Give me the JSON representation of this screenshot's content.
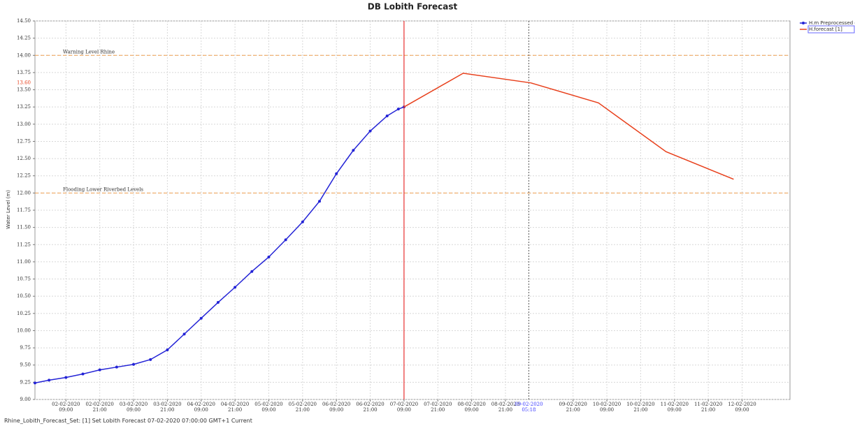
{
  "chart_data": {
    "type": "line",
    "title": "DB Lobith Forecast",
    "y_label": "Water Level (m)",
    "grid": true,
    "legend": "top-right",
    "xlim": [
      "2020-02-01T22:00",
      "2020-02-13T02:00"
    ],
    "ylim": [
      9.0,
      14.5
    ],
    "yticks": [
      {
        "value": 9,
        "label": "9.00"
      },
      9.25,
      {
        "value": 9.5,
        "label": "9.50"
      },
      9.75,
      {
        "value": 10,
        "label": "10.00"
      },
      10.25,
      {
        "value": 10.5,
        "label": "10.50"
      },
      10.75,
      {
        "value": 11,
        "label": "11.00"
      },
      11.25,
      {
        "value": 11.5,
        "label": "11.50"
      },
      11.75,
      {
        "value": 12,
        "label": "12.00"
      },
      12.25,
      {
        "value": 12.5,
        "label": "12.50"
      },
      12.75,
      {
        "value": 13,
        "label": "13.00"
      },
      13.25,
      {
        "value": 13.5,
        "label": "13.50"
      },
      13.75,
      {
        "value": 14,
        "label": "14.00"
      },
      14.25,
      {
        "value": 14.5,
        "label": "14.50"
      }
    ],
    "xticks": [
      {
        "value": "2020-02-02T09:00",
        "label": "02-02-2020 09:00"
      },
      {
        "value": "2020-02-02T21:00",
        "label": "02-02-2020 21:00"
      },
      {
        "value": "2020-02-03T09:00",
        "label": "03-02-2020 09:00"
      },
      {
        "value": "2020-02-03T21:00",
        "label": "03-02-2020 21:00"
      },
      {
        "value": "2020-02-04T09:00",
        "label": "04-02-2020 09:00"
      },
      {
        "value": "2020-02-04T21:00",
        "label": "04-02-2020 21:00"
      },
      {
        "value": "2020-02-05T09:00",
        "label": "05-02-2020 09:00"
      },
      {
        "value": "2020-02-05T21:00",
        "label": "05-02-2020 21:00"
      },
      {
        "value": "2020-02-06T09:00",
        "label": "06-02-2020 09:00"
      },
      {
        "value": "2020-02-06T21:00",
        "label": "06-02-2020 21:00"
      },
      {
        "value": "2020-02-07T09:00",
        "label": "07-02-2020 09:00"
      },
      {
        "value": "2020-02-07T21:00",
        "label": "07-02-2020 21:00"
      },
      {
        "value": "2020-02-08T09:00",
        "label": "08-02-2020 09:00"
      },
      {
        "value": "2020-02-08T21:00",
        "label": "08-02-2020 21:00"
      },
      {
        "value": "2020-02-09T21:00",
        "label": "09-02-2020 21:00"
      },
      {
        "value": "2020-02-10T09:00",
        "label": "10-02-2020 09:00"
      },
      {
        "value": "2020-02-10T21:00",
        "label": "10-02-2020 21:00"
      },
      {
        "value": "2020-02-11T09:00",
        "label": "11-02-2020 09:00"
      },
      {
        "value": "2020-02-11T21:00",
        "label": "11-02-2020 21:00"
      },
      {
        "value": "2020-02-12T09:00",
        "label": "12-02-2020 09:00"
      }
    ],
    "series": [
      {
        "name": "H.m Preprocessed data",
        "color": "#2323d6",
        "markers": true,
        "x": [
          "2020-02-01T22:00",
          "2020-02-02T03:00",
          "2020-02-02T09:00",
          "2020-02-02T15:00",
          "2020-02-02T21:00",
          "2020-02-03T03:00",
          "2020-02-03T09:00",
          "2020-02-03T15:00",
          "2020-02-03T21:00",
          "2020-02-04T03:00",
          "2020-02-04T09:00",
          "2020-02-04T15:00",
          "2020-02-04T21:00",
          "2020-02-05T03:00",
          "2020-02-05T09:00",
          "2020-02-05T15:00",
          "2020-02-05T21:00",
          "2020-02-06T03:00",
          "2020-02-06T09:00",
          "2020-02-06T15:00",
          "2020-02-06T21:00",
          "2020-02-07T03:00",
          "2020-02-07T07:00",
          "2020-02-07T09:00"
        ],
        "values": [
          9.24,
          9.28,
          9.32,
          9.37,
          9.43,
          9.47,
          9.51,
          9.58,
          9.72,
          9.95,
          10.18,
          10.41,
          10.63,
          10.86,
          11.07,
          11.32,
          11.58,
          11.88,
          12.28,
          12.62,
          12.9,
          13.12,
          13.22,
          13.25
        ]
      },
      {
        "name": "H.forecast [1]",
        "color": "#e8401c",
        "markers": false,
        "x": [
          "2020-02-07T09:00",
          "2020-02-08T06:00",
          "2020-02-09T06:00",
          "2020-02-10T06:00",
          "2020-02-11T06:00",
          "2020-02-12T06:00"
        ],
        "values": [
          13.25,
          13.74,
          13.6,
          13.31,
          12.6,
          12.2
        ]
      }
    ],
    "reference_lines": [
      {
        "value": 14,
        "label": "Warning Level Rhine",
        "color": "#f0a050"
      },
      {
        "value": 12,
        "label": "Flooding Lower Riverbed Levels",
        "color": "#f0a050"
      }
    ],
    "x_marker": {
      "value": "2020-02-09T05:18",
      "label": "09-02-2020 05:18",
      "color": "#3a3aff"
    },
    "y_marker": {
      "value": 13.6,
      "label": "13.60",
      "color": "#e8401c"
    }
  },
  "status_bar": {
    "text": "Rhine_Lobith_Forecast_Set: [1] Set Lobith Forecast 07-02-2020 07:00:00 GMT+1 Current"
  }
}
